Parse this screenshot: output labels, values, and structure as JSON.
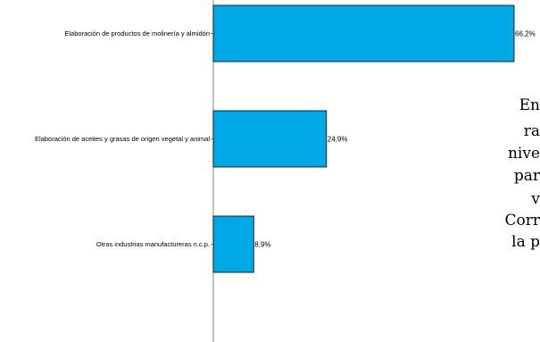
{
  "chart_data": {
    "type": "bar",
    "orientation": "horizontal",
    "categories": [
      "Elaboración de productos de molinería y almidón",
      "Elaboración de aceites y grasas de origen vegetal y animal",
      "Otras industrias manufactureras n.c.p."
    ],
    "values": [
      66.2,
      24.9,
      8.9
    ],
    "value_labels": [
      "66,2%",
      "24,9%",
      "8,9%"
    ],
    "unit": "%",
    "xlim": [
      0,
      66.2
    ],
    "bar_color": "#00a8e6",
    "grid": false,
    "legend": "none"
  },
  "side_text": {
    "lines": [
      "En",
      "ra",
      "nive",
      "par",
      "v",
      "Corr",
      "la p"
    ]
  }
}
